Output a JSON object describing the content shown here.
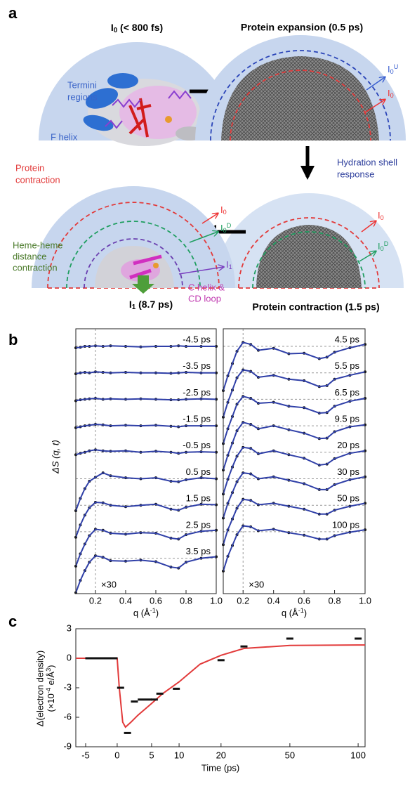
{
  "panel_labels": [
    "a",
    "b",
    "c"
  ],
  "diagram": {
    "titles": [
      [
        "I",
        {
          "sub": "0"
        },
        " (< 800 fs)"
      ],
      "Protein expansion (0.5 ps)",
      "Protein contraction (1.5 ps)",
      [
        "I",
        {
          "sub": "1"
        },
        " (8.7 ps)"
      ]
    ],
    "notes": {
      "termini": [
        "Termini",
        "regions"
      ],
      "f_helix": "F helix",
      "hydration": [
        "Hydration shell",
        "response"
      ],
      "contraction": [
        "Protein",
        "contraction"
      ],
      "heme": [
        "Heme-heme",
        "distance",
        "contraction"
      ],
      "c_helix": [
        "C helix &",
        "CD loop"
      ]
    },
    "shells": {
      "expansion": [
        [
          "I",
          {
            "sub": "0"
          },
          {
            "sup": "U"
          }
        ],
        [
          "I",
          {
            "sub": "0"
          }
        ]
      ],
      "intermediate": [
        [
          "I",
          {
            "sub": "0"
          }
        ],
        [
          "I",
          {
            "sub": "0"
          },
          {
            "sup": "D"
          }
        ],
        [
          "I",
          {
            "sub": "1"
          }
        ]
      ],
      "contraction": [
        [
          "I",
          {
            "sub": "0"
          }
        ],
        [
          "I",
          {
            "sub": "0"
          },
          {
            "sup": "D"
          }
        ]
      ]
    }
  },
  "chart_data": [
    {
      "type": "line",
      "ylabel": "ΔS (q, t)",
      "xlabel": [
        "q (Å",
        {
          "sup": "-1"
        },
        ")"
      ],
      "annotation": "×30",
      "xlim": [
        0.07,
        1.0
      ],
      "xticks": [
        0.2,
        0.4,
        0.6,
        0.8,
        {
          "value": 1.0,
          "label": "1.0"
        }
      ],
      "line_color": "#3040a8",
      "point_color": "#111111",
      "x": [
        0.07,
        0.1,
        0.13,
        0.16,
        0.2,
        0.25,
        0.3,
        0.4,
        0.5,
        0.6,
        0.7,
        0.75,
        0.8,
        0.9,
        1.0
      ],
      "series": [
        {
          "name": "-4.5 ps",
          "values": [
            -0.3,
            -0.2,
            0,
            0,
            0.1,
            0,
            0.1,
            0,
            -0.1,
            0,
            0,
            0.1,
            0,
            0,
            0
          ]
        },
        {
          "name": "-3.5 ps",
          "values": [
            -0.2,
            0,
            0.1,
            0,
            0.2,
            0.1,
            0,
            0.1,
            0,
            0,
            -0.1,
            0,
            0.1,
            0,
            0
          ]
        },
        {
          "name": "-2.5 ps",
          "values": [
            -0.3,
            -0.1,
            0,
            0.1,
            0.2,
            0,
            0.1,
            0,
            0.1,
            0,
            -0.1,
            -0.1,
            0,
            0.1,
            0
          ]
        },
        {
          "name": "-1.5 ps",
          "values": [
            -0.4,
            -0.2,
            0,
            0.1,
            0.3,
            0.2,
            0,
            0.1,
            0,
            0.1,
            -0.1,
            -0.2,
            0,
            0,
            0
          ]
        },
        {
          "name": "-0.5 ps",
          "values": [
            -0.5,
            -0.2,
            0,
            0.3,
            0.5,
            0.3,
            0.2,
            0.3,
            0,
            0.2,
            0,
            -0.2,
            0,
            0.1,
            0
          ]
        },
        {
          "name": "0.5 ps",
          "values": [
            -6.5,
            -4,
            -2,
            -0.5,
            0.3,
            1.2,
            0.6,
            0.2,
            0,
            0.2,
            -0.5,
            -0.6,
            -0.2,
            0.2,
            0
          ]
        },
        {
          "name": "1.5 ps",
          "values": [
            -6.5,
            -4,
            -2,
            -0.5,
            0.6,
            0.5,
            0,
            -0.3,
            0,
            0.2,
            -0.8,
            -1,
            -0.4,
            0.2,
            0.1
          ]
        },
        {
          "name": "2.5 ps",
          "values": [
            -7,
            -4.5,
            -2.5,
            -0.8,
            0.5,
            0.3,
            -0.3,
            -0.5,
            -0.2,
            -0.3,
            -1.3,
            -1.5,
            -0.6,
            0.1,
            0.3
          ]
        },
        {
          "name": "3.5 ps",
          "values": [
            -7,
            -4.5,
            -2.5,
            -0.8,
            0.5,
            0.2,
            -0.5,
            -0.6,
            -0.4,
            -0.7,
            -1.8,
            -2,
            -0.8,
            0,
            0.3
          ]
        }
      ]
    },
    {
      "type": "line",
      "xlabel": [
        "q (Å",
        {
          "sup": "-1"
        },
        ")"
      ],
      "annotation": "×30",
      "xlim": [
        0.07,
        1.0
      ],
      "xticks": [
        0.2,
        0.4,
        0.6,
        0.8,
        {
          "value": 1.0,
          "label": "1.0"
        }
      ],
      "line_color": "#3040a8",
      "point_color": "#111111",
      "x": [
        0.07,
        0.1,
        0.13,
        0.16,
        0.2,
        0.25,
        0.3,
        0.4,
        0.5,
        0.6,
        0.7,
        0.75,
        0.8,
        0.9,
        1.0
      ],
      "series": [
        {
          "name": "4.5 ps",
          "values": [
            -9,
            -6,
            -3.5,
            -1,
            0.8,
            0.4,
            -0.8,
            -0.4,
            -1.5,
            -1.4,
            -2.5,
            -2.2,
            -1.2,
            -0.3,
            0.4
          ]
        },
        {
          "name": "5.5 ps",
          "values": [
            -9,
            -6,
            -3.5,
            -1,
            0.6,
            0.3,
            -0.9,
            -0.5,
            -1.3,
            -1.6,
            -2.8,
            -2.6,
            -1.3,
            -0.5,
            0.2
          ]
        },
        {
          "name": "6.5 ps",
          "values": [
            -9,
            -6,
            -3.5,
            -1,
            0.6,
            0.2,
            -0.8,
            -0.6,
            -1.4,
            -1.7,
            -2.8,
            -2.7,
            -1.4,
            -0.4,
            0.2
          ]
        },
        {
          "name": "9.5 ps",
          "values": [
            -9,
            -6,
            -3.5,
            -1,
            0.7,
            0.3,
            -0.6,
            0,
            -0.8,
            -1.5,
            -2.6,
            -2.5,
            -1.2,
            -0.2,
            0.2
          ]
        },
        {
          "name": "20 ps",
          "values": [
            -8.5,
            -5.5,
            -3,
            -0.8,
            1,
            0.8,
            -0.3,
            0.3,
            -0.5,
            -1.2,
            -2.6,
            -2.4,
            -1.3,
            -0.2,
            0.3
          ]
        },
        {
          "name": "30 ps",
          "values": [
            -8,
            -5,
            -2.8,
            -0.6,
            1.2,
            1,
            0,
            0.4,
            -0.3,
            -1,
            -2.2,
            -2.2,
            -1.2,
            -0.2,
            0.4
          ]
        },
        {
          "name": "50 ps",
          "values": [
            -8,
            -5,
            -2.8,
            -0.6,
            1.2,
            1,
            0.1,
            0.4,
            -0.2,
            -0.8,
            -1.8,
            -1.8,
            -1,
            -0.2,
            0.4
          ]
        },
        {
          "name": "100 ps",
          "values": [
            -8,
            -5,
            -2.8,
            -0.6,
            1.2,
            1,
            0.2,
            0.5,
            -0.2,
            -0.7,
            -1.5,
            -1.5,
            -0.8,
            -0.1,
            0.4
          ]
        }
      ]
    },
    {
      "type": "scatter",
      "xlabel": "Time (ps)",
      "ylabel": [
        "Δ(electron density)",
        [
          "(×10",
          {
            "sup": "-4"
          },
          " e/Å",
          {
            "sup": "3"
          },
          ")"
        ]
      ],
      "xscale": "piecewise",
      "xlim": [
        -6.5,
        105
      ],
      "xticks": [
        -5,
        0,
        5,
        10,
        20,
        50,
        100
      ],
      "ylim": [
        -9,
        3
      ],
      "yticks": [
        3,
        0,
        -3,
        -6,
        -9
      ],
      "point_color": "#111111",
      "x": [
        -4.5,
        -3.5,
        -2.5,
        -1.5,
        -0.5,
        0.5,
        1.5,
        2.5,
        3.5,
        4.5,
        5.5,
        6.5,
        9.5,
        20,
        30,
        50,
        100
      ],
      "values": [
        0,
        0,
        0,
        0,
        0,
        -3,
        -7.6,
        -4.4,
        -4.2,
        -4.2,
        -4.2,
        -3.6,
        -3.1,
        -0.2,
        1.2,
        2.0,
        2.0
      ],
      "fit": {
        "color": "#e23a3a",
        "x": [
          -6.5,
          0,
          0.3,
          0.8,
          1.2,
          2,
          3,
          5,
          7,
          10,
          15,
          20,
          30,
          50,
          100,
          105
        ],
        "values": [
          0,
          0,
          -3,
          -6.5,
          -7,
          -6.5,
          -5.8,
          -4.6,
          -3.6,
          -2.4,
          -0.6,
          0.3,
          1.0,
          1.3,
          1.35,
          1.35
        ]
      }
    }
  ]
}
